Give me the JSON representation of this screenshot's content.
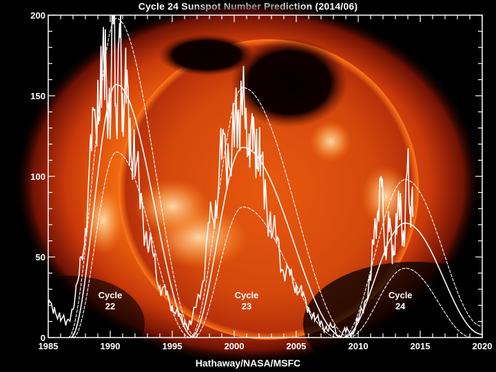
{
  "chart_data": {
    "type": "line",
    "title": "Cycle 24 Sunspot Number Prediction (2014/06)",
    "credit": "Hathaway/NASA/MSFC",
    "xlabel": "",
    "ylabel": "",
    "xlim": [
      1985,
      2020
    ],
    "ylim": [
      0,
      200
    ],
    "x_ticks": [
      1985,
      1990,
      1995,
      2000,
      2005,
      2010,
      2015,
      2020
    ],
    "y_ticks": [
      0,
      50,
      100,
      150,
      200
    ],
    "x_minor_step": 1,
    "y_minor_step": 10,
    "grid": false,
    "background": "solar X-ray image of the Sun (orange/red corona)",
    "line_color": "#ffffff",
    "annotations": [
      {
        "text": "Cycle 22",
        "line1": "Cycle",
        "line2": "22",
        "x": 1990.0,
        "y": 20
      },
      {
        "text": "Cycle 23",
        "line1": "Cycle",
        "line2": "23",
        "x": 2001.0,
        "y": 20
      },
      {
        "text": "Cycle 24",
        "line1": "Cycle",
        "line2": "24",
        "x": 2013.4,
        "y": 20
      }
    ],
    "series": [
      {
        "name": "Cycle 22 fit upper",
        "cycle": 22,
        "start": 1986.6,
        "peak_year": 1990.5,
        "peak": 198,
        "end": 1997.0,
        "style": "dotted"
      },
      {
        "name": "Cycle 22 fit",
        "cycle": 22,
        "start": 1986.8,
        "peak_year": 1990.5,
        "peak": 157,
        "end": 1996.8,
        "style": "solid"
      },
      {
        "name": "Cycle 22 fit lower",
        "cycle": 22,
        "start": 1987.0,
        "peak_year": 1990.5,
        "peak": 115,
        "end": 1996.5,
        "style": "dotted"
      },
      {
        "name": "Cycle 23 fit upper",
        "cycle": 23,
        "start": 1996.4,
        "peak_year": 2000.7,
        "peak": 155,
        "end": 2009.4,
        "style": "dotted"
      },
      {
        "name": "Cycle 23 fit",
        "cycle": 23,
        "start": 1996.5,
        "peak_year": 2000.7,
        "peak": 118,
        "end": 2008.9,
        "style": "solid"
      },
      {
        "name": "Cycle 23 fit lower",
        "cycle": 23,
        "start": 1996.7,
        "peak_year": 2000.7,
        "peak": 81,
        "end": 2008.4,
        "style": "dotted"
      },
      {
        "name": "Cycle 24 fit upper",
        "cycle": 24,
        "start": 2008.7,
        "peak_year": 2013.8,
        "peak": 98,
        "end": 2020.0,
        "end_value": 7,
        "style": "dotted"
      },
      {
        "name": "Cycle 24 fit",
        "cycle": 24,
        "start": 2008.8,
        "peak_year": 2013.8,
        "peak": 71,
        "end": 2020.0,
        "end_value": 2,
        "style": "solid"
      },
      {
        "name": "Cycle 24 fit lower",
        "cycle": 24,
        "start": 2009.2,
        "peak_year": 2013.8,
        "peak": 43,
        "end": 2019.2,
        "end_value": 0,
        "style": "dotted"
      },
      {
        "name": "Monthly sunspot number (observed)",
        "style": "jagged",
        "x": [
          1985.0,
          1985.5,
          1986.0,
          1986.5,
          1987.0,
          1987.5,
          1988.0,
          1988.5,
          1989.0,
          1989.3,
          1989.6,
          1990.0,
          1990.3,
          1990.5,
          1990.8,
          1991.0,
          1991.3,
          1991.6,
          1992.0,
          1992.5,
          1993.0,
          1993.5,
          1994.0,
          1994.5,
          1995.0,
          1995.5,
          1996.0,
          1996.5,
          1997.0,
          1997.5,
          1998.0,
          1998.5,
          1999.0,
          1999.5,
          2000.0,
          2000.3,
          2000.6,
          2000.9,
          2001.2,
          2001.5,
          2001.8,
          2002.1,
          2002.5,
          2003.0,
          2003.5,
          2004.0,
          2004.5,
          2005.0,
          2005.5,
          2006.0,
          2006.5,
          2007.0,
          2007.5,
          2008.0,
          2008.5,
          2009.0,
          2009.5,
          2010.0,
          2010.5,
          2011.0,
          2011.3,
          2011.6,
          2011.9,
          2012.2,
          2012.5,
          2012.8,
          2013.1,
          2013.4,
          2013.7,
          2014.0,
          2014.2,
          2014.4
        ],
        "values": [
          20,
          18,
          12,
          8,
          20,
          35,
          75,
          110,
          160,
          150,
          175,
          140,
          200,
          150,
          170,
          160,
          145,
          130,
          110,
          80,
          65,
          45,
          35,
          25,
          20,
          14,
          8,
          10,
          20,
          40,
          65,
          90,
          110,
          115,
          130,
          125,
          170,
          115,
          140,
          110,
          130,
          105,
          90,
          70,
          55,
          45,
          35,
          35,
          25,
          18,
          12,
          8,
          7,
          4,
          3,
          2,
          4,
          10,
          20,
          40,
          60,
          90,
          85,
          60,
          65,
          55,
          70,
          80,
          65,
          100,
          90,
          75
        ]
      }
    ]
  }
}
